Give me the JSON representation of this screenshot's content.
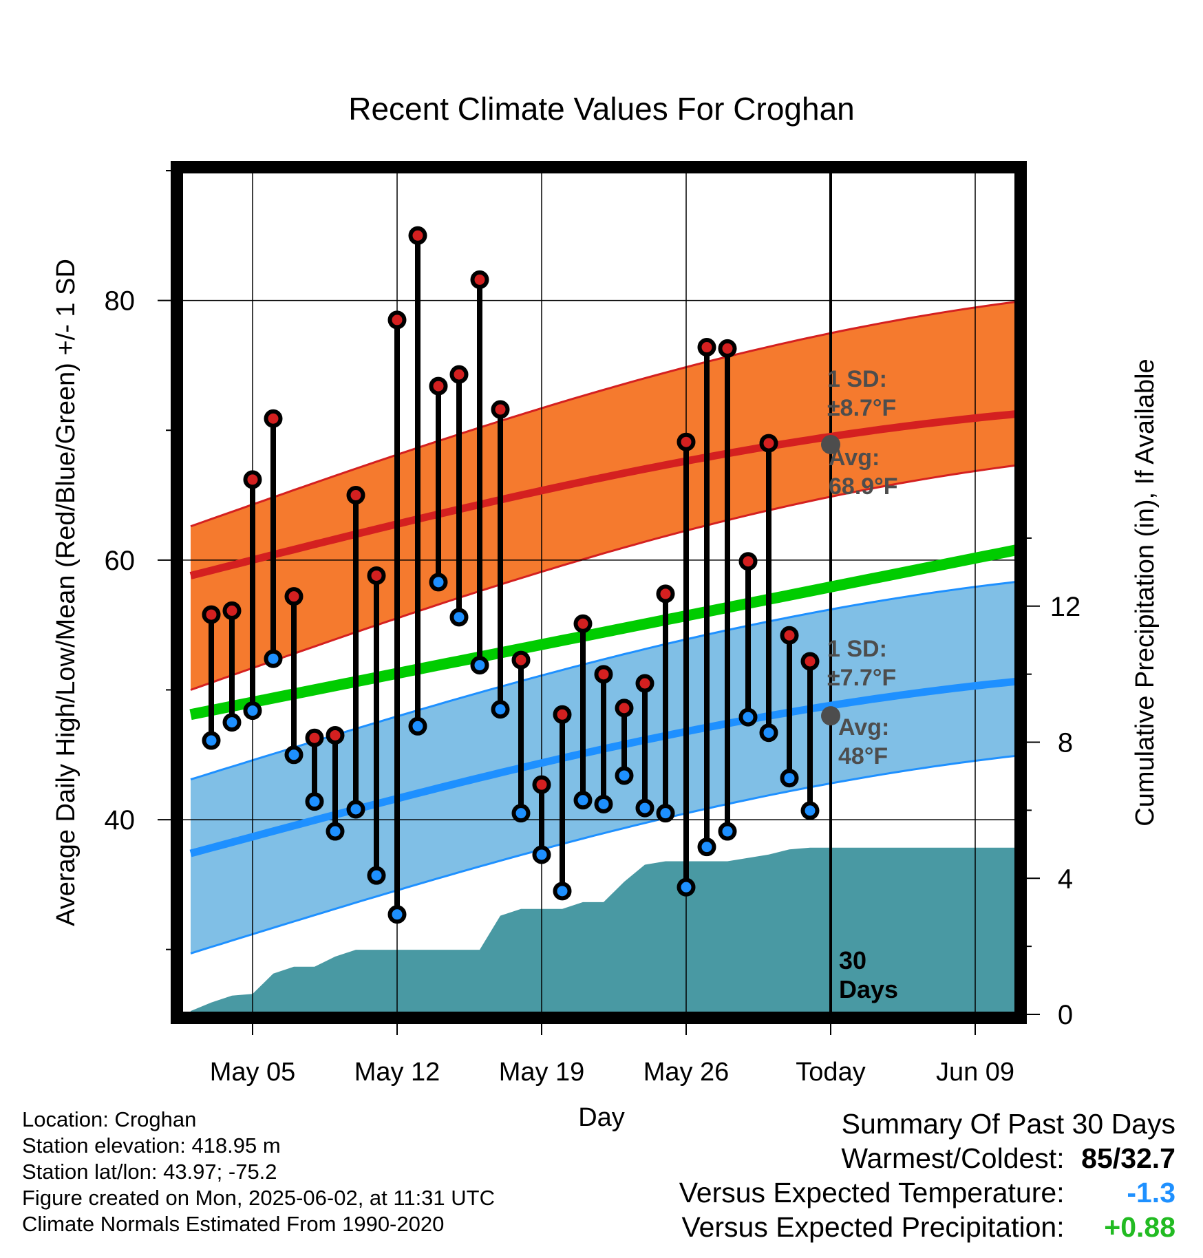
{
  "chart_data": {
    "type": "line",
    "title": "Recent Climate Values For Croghan",
    "xlabel": "Day",
    "ylabel_left": "Average Daily High/Low/Mean (Red/Blue/Green) +/- 1 SD",
    "ylabel_right": "Cumulative Precipitation (in), If Available",
    "x_ticks": [
      {
        "day": 4,
        "label": "May 05"
      },
      {
        "day": 11,
        "label": "May 12"
      },
      {
        "day": 18,
        "label": "May 19"
      },
      {
        "day": 25,
        "label": "May 26"
      },
      {
        "day": 32,
        "label": "Today"
      },
      {
        "day": 39,
        "label": "Jun 09"
      }
    ],
    "xlim": [
      1,
      42
    ],
    "ylim_left": [
      25,
      90
    ],
    "yticks_left": [
      40,
      60,
      80
    ],
    "ylim_right": [
      0,
      24.8
    ],
    "yticks_right": [
      0,
      4,
      8,
      12
    ],
    "today_day": 32,
    "days_label": [
      "30",
      "Days"
    ],
    "normals": {
      "high_avg": [
        58.8,
        71.4
      ],
      "high_sd_band": [
        [
          50.0,
          62.6
        ],
        [
          67.5,
          80.1
        ]
      ],
      "high_sd_label": [
        "1 SD:",
        "±8.7°F"
      ],
      "high_avg_label": [
        "Avg:",
        "68.9°F"
      ],
      "high_today_avg": 68.9,
      "low_avg": [
        37.4,
        50.8
      ],
      "low_sd_band": [
        [
          29.7,
          43.1
        ],
        [
          45.1,
          58.5
        ]
      ],
      "low_sd_label": [
        "1 SD:",
        "±7.7°F"
      ],
      "low_avg_label": [
        "Avg:",
        "48°F"
      ],
      "low_today_avg": 48,
      "mean_avg": [
        48.1,
        61.1
      ]
    },
    "series": [
      {
        "name": "High",
        "x": [
          2,
          3,
          4,
          5,
          6,
          7,
          8,
          9,
          10,
          11,
          12,
          13,
          14,
          15,
          16,
          17,
          18,
          19,
          20,
          21,
          22,
          23,
          24,
          25,
          26,
          27,
          28,
          29,
          30,
          31,
          32
        ],
        "values": [
          55.8,
          56.1,
          66.2,
          70.9,
          57.2,
          46.3,
          46.5,
          65.0,
          58.8,
          78.5,
          85.0,
          73.4,
          74.3,
          81.6,
          71.6,
          52.3,
          42.7,
          48.1,
          55.1,
          51.2,
          48.6,
          50.5,
          57.4,
          69.1,
          76.4,
          76.3,
          59.9,
          69.0,
          54.2,
          52.2,
          null
        ]
      },
      {
        "name": "Low",
        "x": [
          2,
          3,
          4,
          5,
          6,
          7,
          8,
          9,
          10,
          11,
          12,
          13,
          14,
          15,
          16,
          17,
          18,
          19,
          20,
          21,
          22,
          23,
          24,
          25,
          26,
          27,
          28,
          29,
          30,
          31,
          32
        ],
        "values": [
          46.1,
          47.5,
          48.4,
          52.4,
          45.0,
          41.4,
          39.1,
          40.8,
          35.7,
          32.7,
          47.2,
          58.3,
          55.6,
          51.9,
          48.5,
          40.5,
          37.3,
          34.5,
          41.5,
          41.2,
          43.4,
          40.9,
          40.5,
          34.8,
          37.9,
          39.1,
          47.9,
          46.7,
          43.2,
          40.7,
          null
        ]
      },
      {
        "name": "Cumulative Precipitation",
        "x": [
          1,
          2,
          3,
          4,
          5,
          6,
          7,
          8,
          9,
          10,
          11,
          12,
          13,
          14,
          15,
          16,
          17,
          18,
          19,
          20,
          21,
          22,
          23,
          24,
          25,
          26,
          27,
          28,
          29,
          30,
          31,
          32,
          33,
          34,
          35,
          36,
          37,
          38,
          39,
          40,
          41,
          42
        ],
        "values": [
          0.1,
          0.35,
          0.55,
          0.6,
          1.2,
          1.4,
          1.4,
          1.7,
          1.9,
          1.9,
          1.9,
          1.9,
          1.9,
          1.9,
          1.9,
          2.9,
          3.1,
          3.1,
          3.1,
          3.3,
          3.3,
          3.9,
          4.4,
          4.5,
          4.5,
          4.5,
          4.5,
          4.6,
          4.7,
          4.85,
          4.9,
          4.9,
          4.9,
          4.9,
          4.9,
          4.9,
          4.9,
          4.9,
          4.9,
          4.9,
          4.9,
          4.9
        ]
      }
    ]
  },
  "footer": {
    "location": "Location: Croghan",
    "elevation": "Station elevation: 418.95 m",
    "latlon": "Station lat/lon: 43.97; -75.2",
    "created": "Figure created on Mon, 2025-06-02, at 11:31 UTC",
    "normals": "Climate Normals Estimated From 1990-2020"
  },
  "summary": {
    "title": "Summary Of Past 30 Days",
    "warm_cold_label": "Warmest/Coldest:",
    "warmest": "85",
    "coldest": "32.7",
    "temp_label": "Versus Expected Temperature:",
    "temp_value": "-1.3",
    "precip_label": "Versus Expected Precipitation:",
    "precip_value": "+0.88"
  },
  "colors": {
    "high_band": "#f57a2e",
    "high_line": "#d42020",
    "low_band": "#80bfe6",
    "low_line": "#1e90ff",
    "mean_line": "#00cc00",
    "precip_fill": "#4999a3",
    "annotation_text": "#4d4d4d",
    "temp_value": "#1e90ff",
    "precip_value": "#22bb22"
  }
}
